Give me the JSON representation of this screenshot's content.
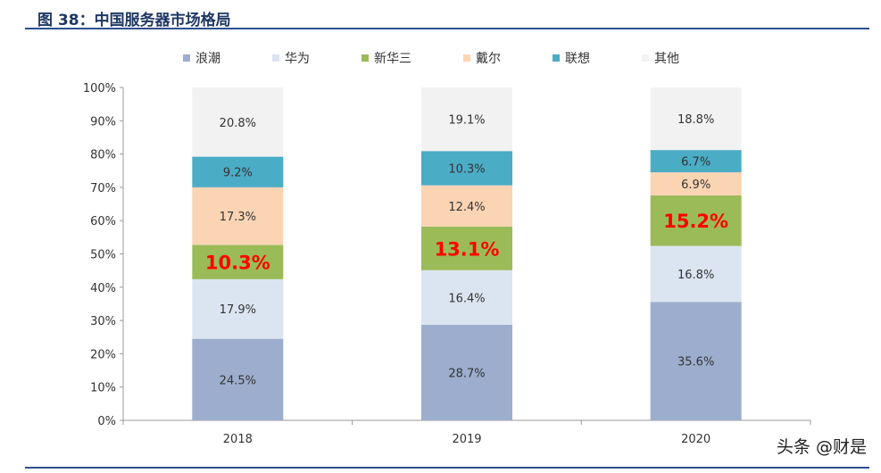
{
  "title": "图 38：中国服务器市场格局",
  "watermark": "头条 @财是",
  "chart_data": {
    "type": "bar",
    "stacked": true,
    "categories": [
      "2018",
      "2019",
      "2020"
    ],
    "ylim": [
      0,
      100
    ],
    "yticks": [
      "0%",
      "10%",
      "20%",
      "30%",
      "40%",
      "50%",
      "60%",
      "70%",
      "80%",
      "90%",
      "100%"
    ],
    "legend_position": "top",
    "grid": false,
    "series": [
      {
        "name": "浪潮",
        "color": "#9dadcd",
        "values": [
          24.5,
          28.7,
          35.6
        ],
        "labels": [
          "24.5%",
          "28.7%",
          "35.6%"
        ],
        "highlight": false
      },
      {
        "name": "华为",
        "color": "#dbe5f1",
        "values": [
          17.9,
          16.4,
          16.8
        ],
        "labels": [
          "17.9%",
          "16.4%",
          "16.8%"
        ],
        "highlight": false
      },
      {
        "name": "新华三",
        "color": "#9bbb59",
        "values": [
          10.3,
          13.1,
          15.2
        ],
        "labels": [
          "10.3%",
          "13.1%",
          "15.2%"
        ],
        "highlight": true
      },
      {
        "name": "戴尔",
        "color": "#fbd4b4",
        "values": [
          17.3,
          12.4,
          6.9
        ],
        "labels": [
          "17.3%",
          "12.4%",
          "6.9%"
        ],
        "highlight": false
      },
      {
        "name": "联想",
        "color": "#4bacc6",
        "values": [
          9.2,
          10.3,
          6.7
        ],
        "labels": [
          "9.2%",
          "10.3%",
          "6.7%"
        ],
        "highlight": false
      },
      {
        "name": "其他",
        "color": "#f2f2f2",
        "values": [
          20.8,
          19.1,
          18.8
        ],
        "labels": [
          "20.8%",
          "19.1%",
          "18.8%"
        ],
        "highlight": false
      }
    ],
    "highlight_color": "#ff0000"
  }
}
